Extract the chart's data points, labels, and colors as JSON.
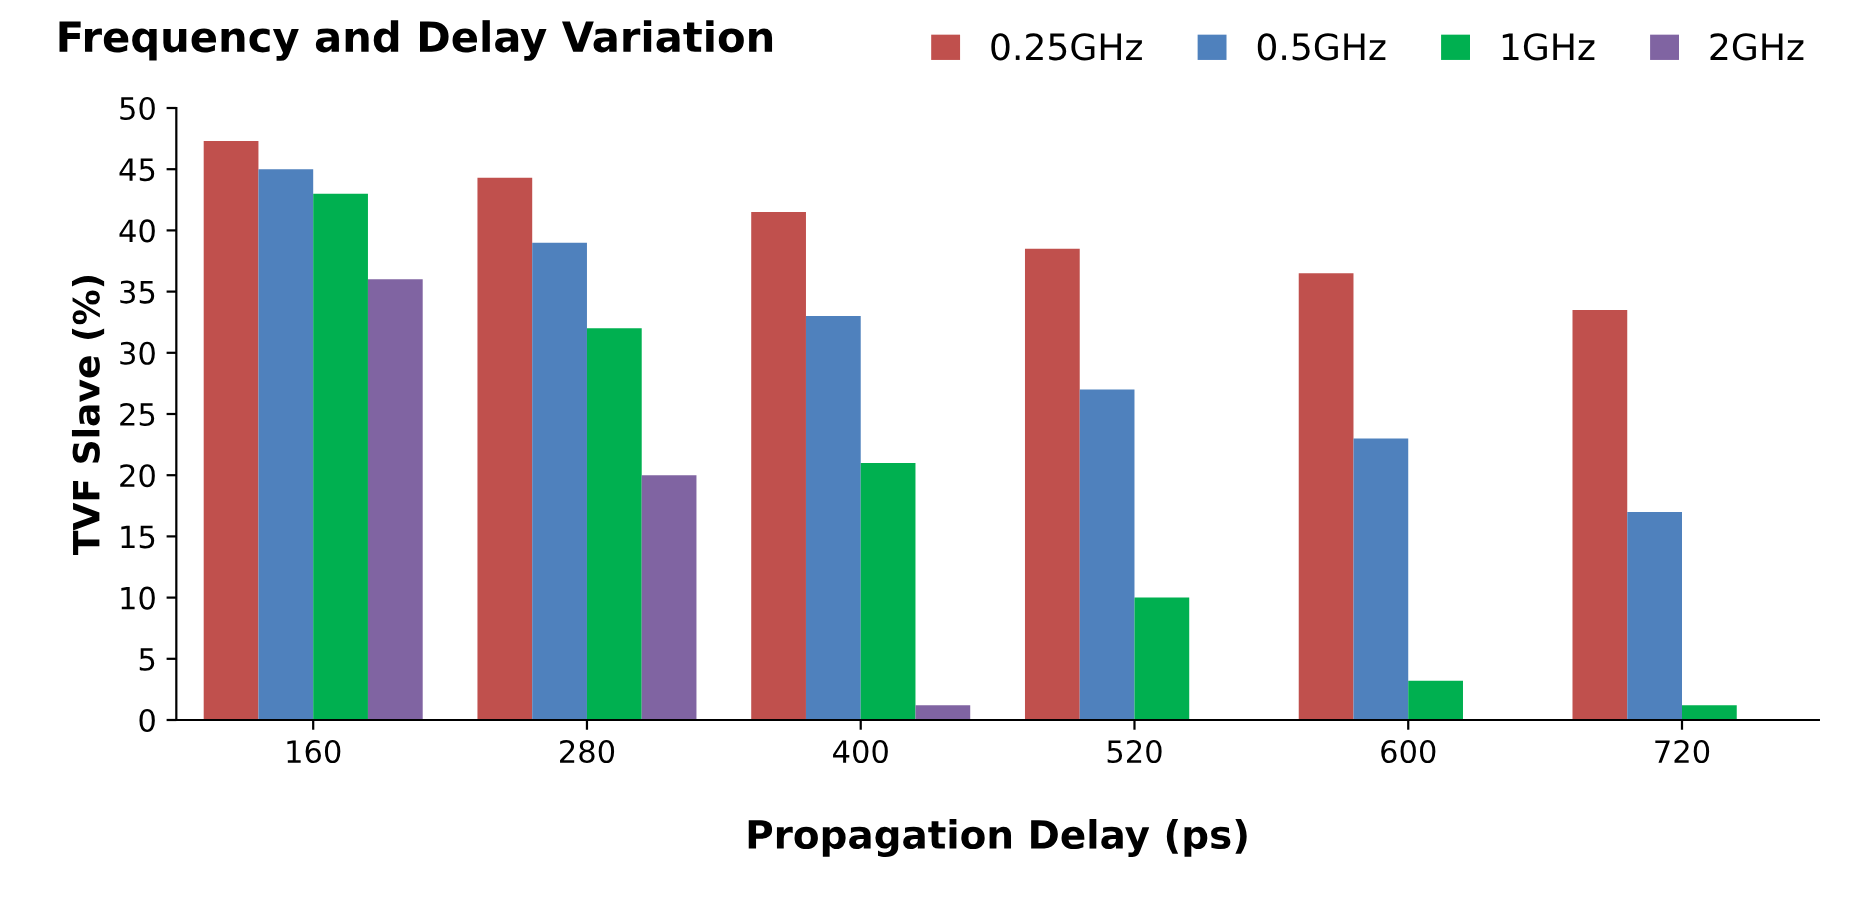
{
  "chart_data": {
    "type": "bar",
    "title": "Frequency and Delay Variation",
    "xlabel": "Propagation Delay (ps)",
    "ylabel": "TVF Slave (%)",
    "categories": [
      "160",
      "280",
      "400",
      "520",
      "600",
      "720"
    ],
    "series": [
      {
        "name": "0.25GHz",
        "color": "#c0504d",
        "values": [
          47.3,
          44.3,
          41.5,
          38.5,
          36.5,
          33.5
        ]
      },
      {
        "name": "0.5GHz",
        "color": "#4f81bd",
        "values": [
          45,
          39,
          33,
          27,
          23,
          17
        ]
      },
      {
        "name": "1GHz",
        "color": "#00b050",
        "values": [
          43,
          32,
          21,
          10,
          3.2,
          1.2
        ]
      },
      {
        "name": "2GHz",
        "color": "#8064a2",
        "values": [
          36,
          20,
          1.2,
          null,
          null,
          null
        ]
      }
    ],
    "ylim": [
      0,
      50
    ],
    "yticks": [
      0,
      5,
      10,
      15,
      20,
      25,
      30,
      35,
      40,
      45,
      50
    ],
    "grid": false,
    "legend": "top right"
  }
}
